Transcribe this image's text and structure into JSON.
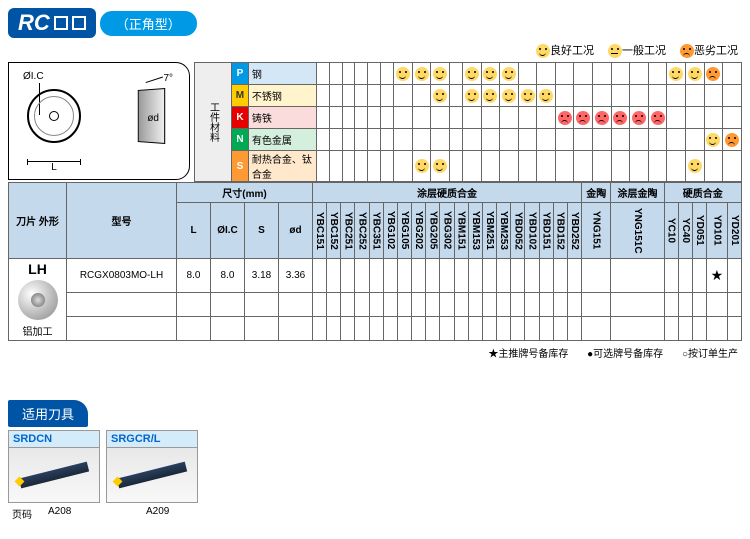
{
  "header": {
    "rc": "RC",
    "type": "（正角型）"
  },
  "legend": {
    "good": "良好工况",
    "ok": "一般工况",
    "bad": "恶劣工况"
  },
  "diagram": {
    "ic": "ØI.C",
    "angle": "7°",
    "od": "ød",
    "L": "L"
  },
  "materials": {
    "side": "工件材料",
    "rows": [
      {
        "icon": "P",
        "name": "钢",
        "bg": "mat-p-bg",
        "faces": [
          null,
          null,
          null,
          null,
          null,
          null,
          "good",
          "good",
          "good",
          null,
          "good",
          "good",
          "good",
          null,
          null,
          null,
          null,
          null,
          null,
          null,
          null,
          "good",
          "good",
          "bad",
          null
        ]
      },
      {
        "icon": "M",
        "name": "不锈钢",
        "bg": "mat-m-bg",
        "faces": [
          null,
          null,
          null,
          null,
          null,
          null,
          null,
          null,
          "good",
          null,
          "good",
          "good",
          "good",
          "good",
          "good",
          null,
          null,
          null,
          null,
          null,
          null,
          null,
          null,
          null,
          null
        ]
      },
      {
        "icon": "K",
        "name": "铸铁",
        "bg": "mat-k-bg",
        "faces": [
          null,
          null,
          null,
          null,
          null,
          null,
          null,
          null,
          null,
          null,
          null,
          null,
          null,
          null,
          null,
          "red",
          "red",
          "red",
          "red",
          "red",
          "red",
          null,
          null,
          null,
          null
        ]
      },
      {
        "icon": "N",
        "name": "有色金属",
        "bg": "mat-n-bg",
        "faces": [
          null,
          null,
          null,
          null,
          null,
          null,
          null,
          null,
          null,
          null,
          null,
          null,
          null,
          null,
          null,
          null,
          null,
          null,
          null,
          null,
          null,
          null,
          null,
          "good",
          "bad"
        ]
      },
      {
        "icon": "S",
        "name": "耐热合金、钛合金",
        "bg": "mat-s-bg",
        "faces": [
          null,
          null,
          null,
          null,
          null,
          null,
          null,
          "good",
          "good",
          null,
          null,
          null,
          null,
          null,
          null,
          null,
          null,
          null,
          null,
          null,
          null,
          null,
          "good",
          null,
          null
        ]
      }
    ]
  },
  "mainTable": {
    "h_shape": "刀片\n外形",
    "h_model": "型号",
    "h_dim": "尺寸(mm)",
    "h_coated": "涂层硬质合金",
    "h_cermet": "金陶",
    "h_cc": "涂层金陶",
    "h_carbide": "硬质合金",
    "dims": [
      "L",
      "ØI.C",
      "S",
      "ød"
    ],
    "grades": [
      "YBC151",
      "YBC152",
      "YBC251",
      "YBC252",
      "YBC351",
      "YBG102",
      "YBG105",
      "YBG202",
      "YBG205",
      "YBG302",
      "YBM151",
      "YBM153",
      "YBM251",
      "YBM253",
      "YBD052",
      "YBD102",
      "YBD151",
      "YBD152",
      "YBD252"
    ],
    "cermet": [
      "YNG151"
    ],
    "coatedCermet": [
      "YNG151C"
    ],
    "carbide": [
      "YC10",
      "YC40",
      "YD051",
      "YD101",
      "YD201"
    ],
    "row": {
      "lh": "LH",
      "sub": "铝加工",
      "model": "RCGX0803MO-LH",
      "L": "8.0",
      "IC": "8.0",
      "S": "3.18",
      "od": "3.36",
      "starCol": 24
    }
  },
  "legendBottom": {
    "star": "★主推牌号备库存",
    "dot": "●可选牌号备库存",
    "circle": "○按订单生产"
  },
  "tools": {
    "header": "适用刀具",
    "items": [
      {
        "name": "SRDCN",
        "page": "A208"
      },
      {
        "name": "SRGCR/L",
        "page": "A209"
      }
    ],
    "pageLabel": "页码"
  }
}
